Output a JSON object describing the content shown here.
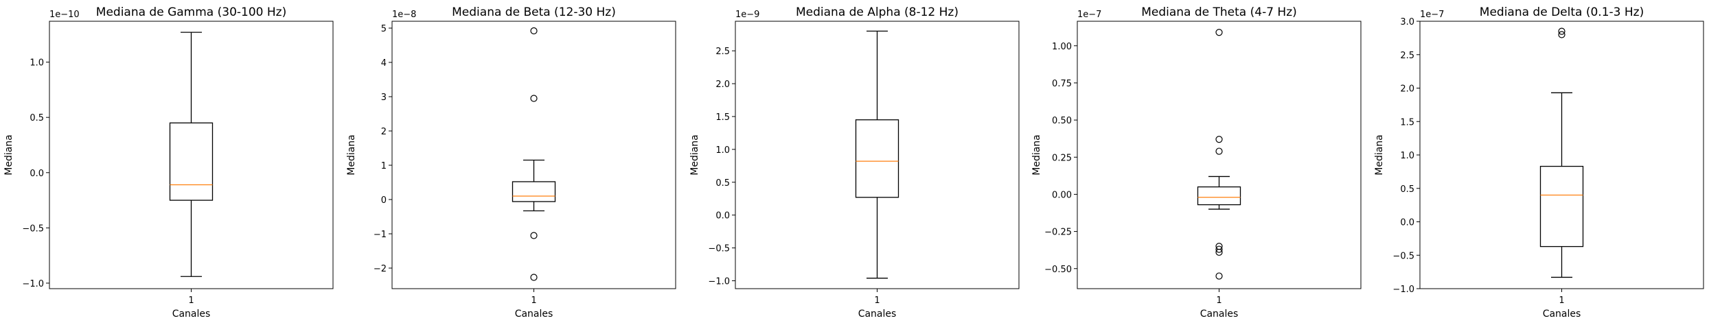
{
  "chart_data": [
    {
      "type": "boxplot",
      "title": "Mediana de Gamma (30-100 Hz)",
      "xlabel": "Canales",
      "ylabel": "Mediana",
      "offset_text": "1e−10",
      "categories": [
        "1"
      ],
      "ylim": [
        -1.05,
        1.37
      ],
      "yticks": [
        -1.0,
        -0.5,
        0.0,
        0.5,
        1.0
      ],
      "ytick_labels": [
        "−1.0",
        "−0.5",
        "0.0",
        "0.5",
        "1.0"
      ],
      "box": {
        "whisker_low": -0.94,
        "q1": -0.25,
        "median": -0.11,
        "q3": 0.45,
        "whisker_high": 1.27
      },
      "outliers": []
    },
    {
      "type": "boxplot",
      "title": "Mediana de Beta (12-30 Hz)",
      "xlabel": "Canales",
      "ylabel": "Mediana",
      "offset_text": "1e−8",
      "categories": [
        "1"
      ],
      "ylim": [
        -2.6,
        5.2
      ],
      "yticks": [
        -2,
        -1,
        0,
        1,
        2,
        3,
        4,
        5
      ],
      "ytick_labels": [
        "−2",
        "−1",
        "0",
        "1",
        "2",
        "3",
        "4",
        "5"
      ],
      "box": {
        "whisker_low": -0.33,
        "q1": -0.06,
        "median": 0.1,
        "q3": 0.52,
        "whisker_high": 1.15
      },
      "outliers": [
        4.92,
        2.95,
        -1.05,
        -2.27
      ]
    },
    {
      "type": "boxplot",
      "title": "Mediana de Alpha (8-12 Hz)",
      "xlabel": "Canales",
      "ylabel": "Mediana",
      "offset_text": "1e−9",
      "categories": [
        "1"
      ],
      "ylim": [
        -1.12,
        2.95
      ],
      "yticks": [
        -1.0,
        -0.5,
        0.0,
        0.5,
        1.0,
        1.5,
        2.0,
        2.5
      ],
      "ytick_labels": [
        "−1.0",
        "−0.5",
        "0.0",
        "0.5",
        "1.0",
        "1.5",
        "2.0",
        "2.5"
      ],
      "box": {
        "whisker_low": -0.96,
        "q1": 0.27,
        "median": 0.82,
        "q3": 1.45,
        "whisker_high": 2.8
      },
      "outliers": []
    },
    {
      "type": "boxplot",
      "title": "Mediana de Theta (4-7 Hz)",
      "xlabel": "Canales",
      "ylabel": "Mediana",
      "offset_text": "1e−7",
      "categories": [
        "1"
      ],
      "ylim": [
        -0.635,
        1.165
      ],
      "yticks": [
        -0.5,
        -0.25,
        0.0,
        0.25,
        0.5,
        0.75,
        1.0
      ],
      "ytick_labels": [
        "−0.50",
        "−0.25",
        "0.00",
        "0.25",
        "0.50",
        "0.75",
        "1.00"
      ],
      "box": {
        "whisker_low": -0.1,
        "q1": -0.07,
        "median": -0.02,
        "q3": 0.05,
        "whisker_high": 0.12
      },
      "outliers": [
        1.09,
        0.37,
        0.29,
        -0.35,
        -0.37,
        -0.39,
        -0.55
      ]
    },
    {
      "type": "boxplot",
      "title": "Mediana de Delta (0.1-3 Hz)",
      "xlabel": "Canales",
      "ylabel": "Mediana",
      "offset_text": "1e−7",
      "categories": [
        "1"
      ],
      "ylim": [
        -1.0,
        3.0
      ],
      "yticks": [
        -1.0,
        -0.5,
        0.0,
        0.5,
        1.0,
        1.5,
        2.0,
        2.5,
        3.0
      ],
      "ytick_labels": [
        "−1.0",
        "−0.5",
        "0.0",
        "0.5",
        "1.0",
        "1.5",
        "2.0",
        "2.5",
        "3.0"
      ],
      "box": {
        "whisker_low": -0.83,
        "q1": -0.37,
        "median": 0.4,
        "q3": 0.83,
        "whisker_high": 1.93
      },
      "outliers": [
        2.8,
        2.85
      ]
    }
  ],
  "colors": {
    "median": "#ff7f0e",
    "box": "#000000",
    "axes": "#000000",
    "background": "#ffffff"
  }
}
